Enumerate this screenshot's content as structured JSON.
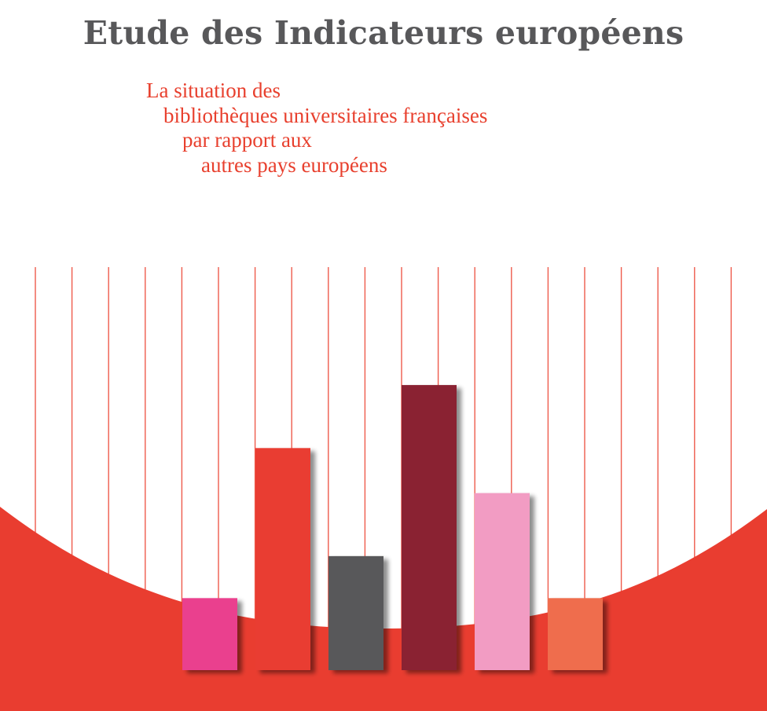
{
  "title": "Etude des Indicateurs européens",
  "subtitle": {
    "lines": [
      "La situation des",
      "bibliothèques universitaires françaises",
      "par rapport aux",
      "autres pays européens"
    ],
    "color": "#e8402e"
  },
  "colors": {
    "title": "#58585a",
    "accent": "#e93d30",
    "rule_lines": "#ee5b4c"
  },
  "illustration": {
    "bars": [
      {
        "color": "#ea408e",
        "level": 0.24
      },
      {
        "color": "#e93d30",
        "level": 0.74
      },
      {
        "color": "#58585a",
        "level": 0.38
      },
      {
        "color": "#8a2330",
        "level": 0.95
      },
      {
        "color": "#f29cc3",
        "level": 0.59
      },
      {
        "color": "#ef6d4e",
        "level": 0.24
      }
    ]
  }
}
